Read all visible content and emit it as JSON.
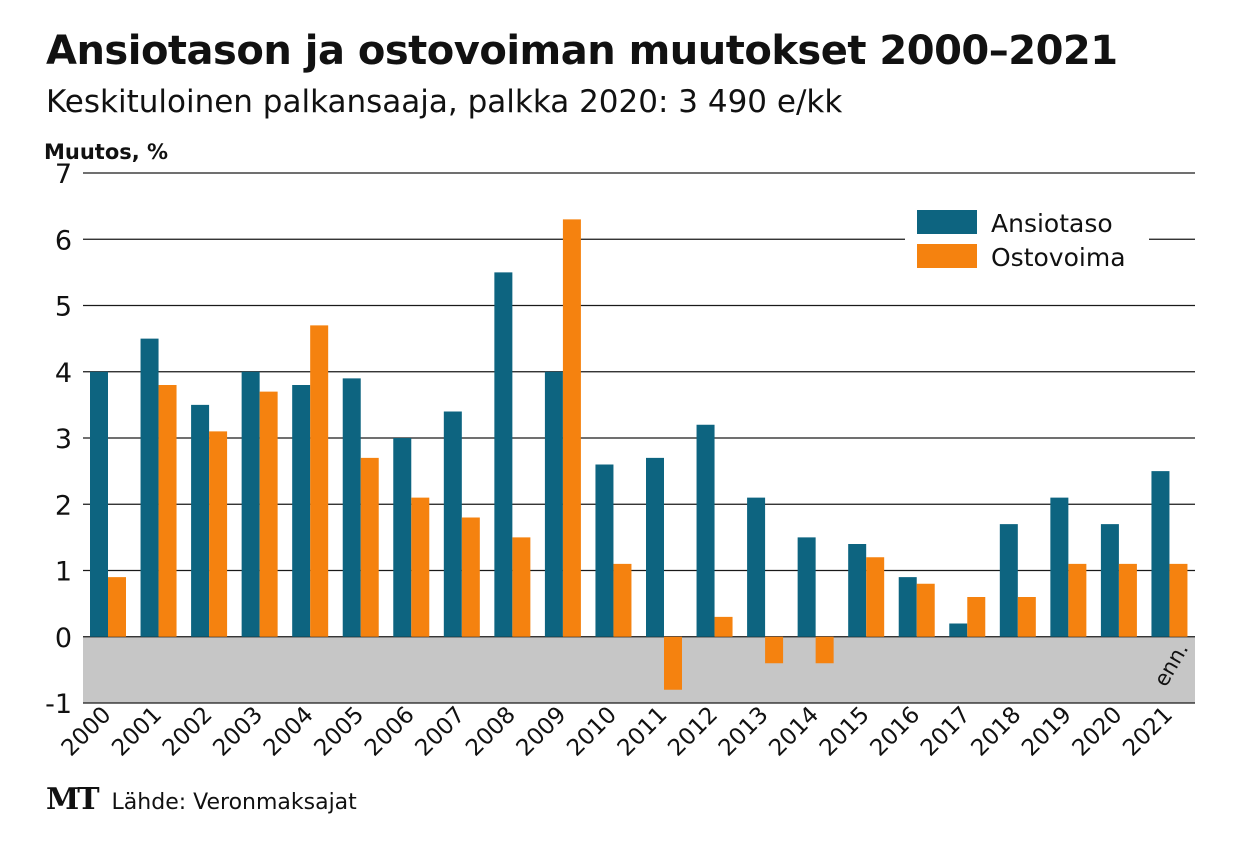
{
  "header": {
    "title": "Ansiotason ja ostovoiman muutokset 2000–2021",
    "subtitle": "Keskituloinen palkansaaja, palkka 2020: 3 490 e/kk"
  },
  "footer": {
    "logo": "MT",
    "source": "Lähde: Veronmaksajat"
  },
  "colors": {
    "ansiotaso": "#0d6480",
    "ostovoima": "#f5820f",
    "negative_band": "#c6c6c6",
    "grid": "#1a1a1a"
  },
  "chart_data": {
    "type": "bar",
    "title": "Ansiotason ja ostovoiman muutokset 2000–2021",
    "ylabel": "Muutos, %",
    "xlabel": "",
    "ylim": [
      -1,
      7
    ],
    "yticks": [
      -1,
      0,
      1,
      2,
      3,
      4,
      5,
      6,
      7
    ],
    "grid": true,
    "legend_position": "top-right",
    "annotation": "enn.",
    "categories": [
      "2000",
      "2001",
      "2002",
      "2003",
      "2004",
      "2005",
      "2006",
      "2007",
      "2008",
      "2009",
      "2010",
      "2011",
      "2012",
      "2013",
      "2014",
      "2015",
      "2016",
      "2017",
      "2018",
      "2019",
      "2020",
      "2021"
    ],
    "series": [
      {
        "name": "Ansiotaso",
        "values": [
          4.0,
          4.5,
          3.5,
          4.0,
          3.8,
          3.9,
          3.0,
          3.4,
          5.5,
          4.0,
          2.6,
          2.7,
          3.2,
          2.1,
          1.5,
          1.4,
          0.9,
          0.2,
          1.7,
          2.1,
          1.7,
          2.5
        ]
      },
      {
        "name": "Ostovoima",
        "values": [
          0.9,
          3.8,
          3.1,
          3.7,
          4.7,
          2.7,
          2.1,
          1.8,
          1.5,
          6.3,
          1.1,
          -0.8,
          0.3,
          -0.4,
          -0.4,
          1.2,
          0.8,
          0.6,
          0.6,
          1.1,
          1.1,
          1.1
        ]
      }
    ]
  }
}
